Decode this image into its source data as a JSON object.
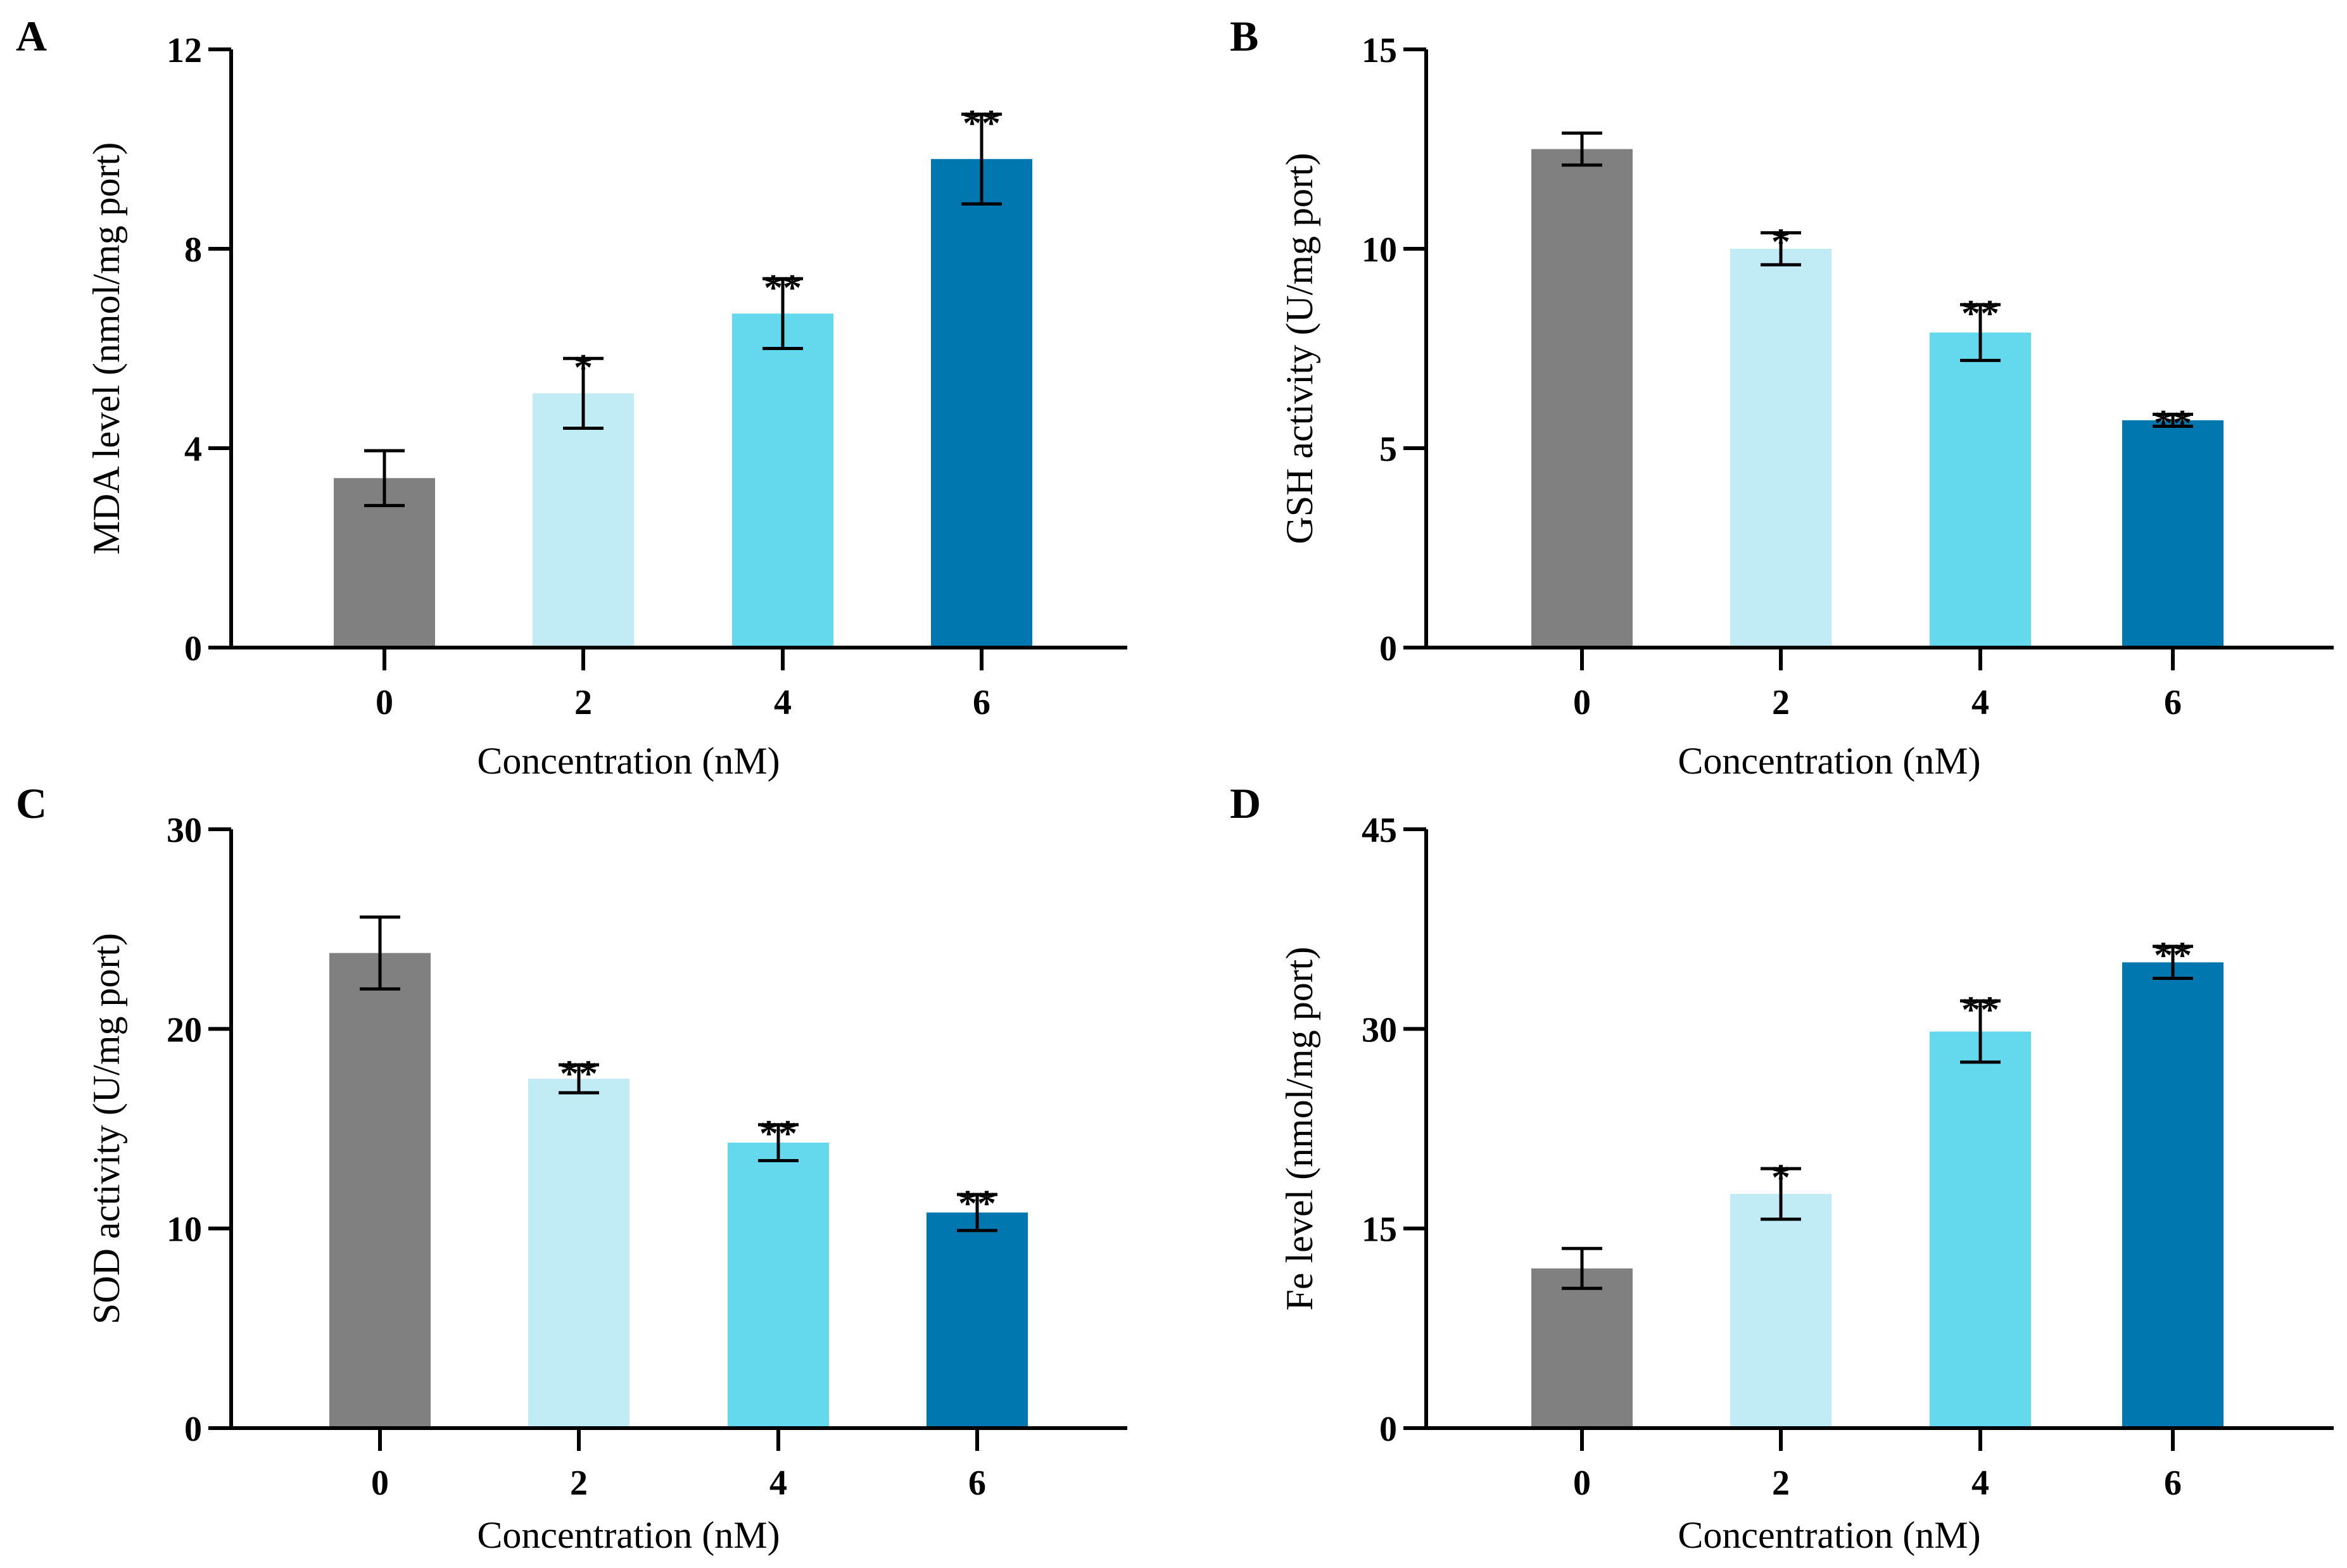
{
  "chart_data": [
    {
      "type": "bar",
      "panel": "A",
      "title": "",
      "xlabel": "Concentration (nM)",
      "ylabel": "MDA level (nmol/mg port)",
      "categories": [
        "0",
        "2",
        "4",
        "6"
      ],
      "values": [
        3.4,
        5.1,
        6.7,
        9.8
      ],
      "errors": [
        0.55,
        0.7,
        0.7,
        0.9
      ],
      "significance": [
        "",
        "*",
        "**",
        "**"
      ],
      "ylim": [
        0,
        12
      ],
      "yticks": [
        "0",
        "4",
        "8",
        "12"
      ],
      "grid": false,
      "colors": [
        "#808080",
        "#c1ebf5",
        "#64d8ec",
        "#0077ae"
      ]
    },
    {
      "type": "bar",
      "panel": "B",
      "title": "",
      "xlabel": "Concentration (nM)",
      "ylabel": "GSH activity (U/mg port)",
      "categories": [
        "0",
        "2",
        "4",
        "6"
      ],
      "values": [
        12.5,
        10.0,
        7.9,
        5.7
      ],
      "errors": [
        0.4,
        0.4,
        0.7,
        0.15
      ],
      "significance": [
        "",
        "*",
        "**",
        "**"
      ],
      "ylim": [
        0,
        15
      ],
      "yticks": [
        "0",
        "5",
        "10",
        "15"
      ],
      "grid": false,
      "colors": [
        "#808080",
        "#c1ebf5",
        "#64d8ec",
        "#0077ae"
      ]
    },
    {
      "type": "bar",
      "panel": "C",
      "title": "",
      "xlabel": "Concentration (nM)",
      "ylabel": "SOD activity (U/mg port)",
      "categories": [
        "0",
        "2",
        "4",
        "6"
      ],
      "values": [
        23.8,
        17.5,
        14.3,
        10.8
      ],
      "errors": [
        1.8,
        0.7,
        0.9,
        0.9
      ],
      "significance": [
        "",
        "**",
        "**",
        "**"
      ],
      "ylim": [
        0,
        30
      ],
      "yticks": [
        "0",
        "10",
        "20",
        "30"
      ],
      "grid": false,
      "colors": [
        "#808080",
        "#c1ebf5",
        "#64d8ec",
        "#0077ae"
      ]
    },
    {
      "type": "bar",
      "panel": "D",
      "title": "",
      "xlabel": "Concentration (nM)",
      "ylabel": "Fe level (nmol/mg port)",
      "categories": [
        "0",
        "2",
        "4",
        "6"
      ],
      "values": [
        12.0,
        17.6,
        29.8,
        35.0
      ],
      "errors": [
        1.5,
        1.9,
        2.3,
        1.2
      ],
      "significance": [
        "",
        "*",
        "**",
        "**"
      ],
      "ylim": [
        0,
        45
      ],
      "yticks": [
        "0",
        "15",
        "30",
        "45"
      ],
      "grid": false,
      "colors": [
        "#808080",
        "#c1ebf5",
        "#64d8ec",
        "#0077ae"
      ]
    }
  ]
}
